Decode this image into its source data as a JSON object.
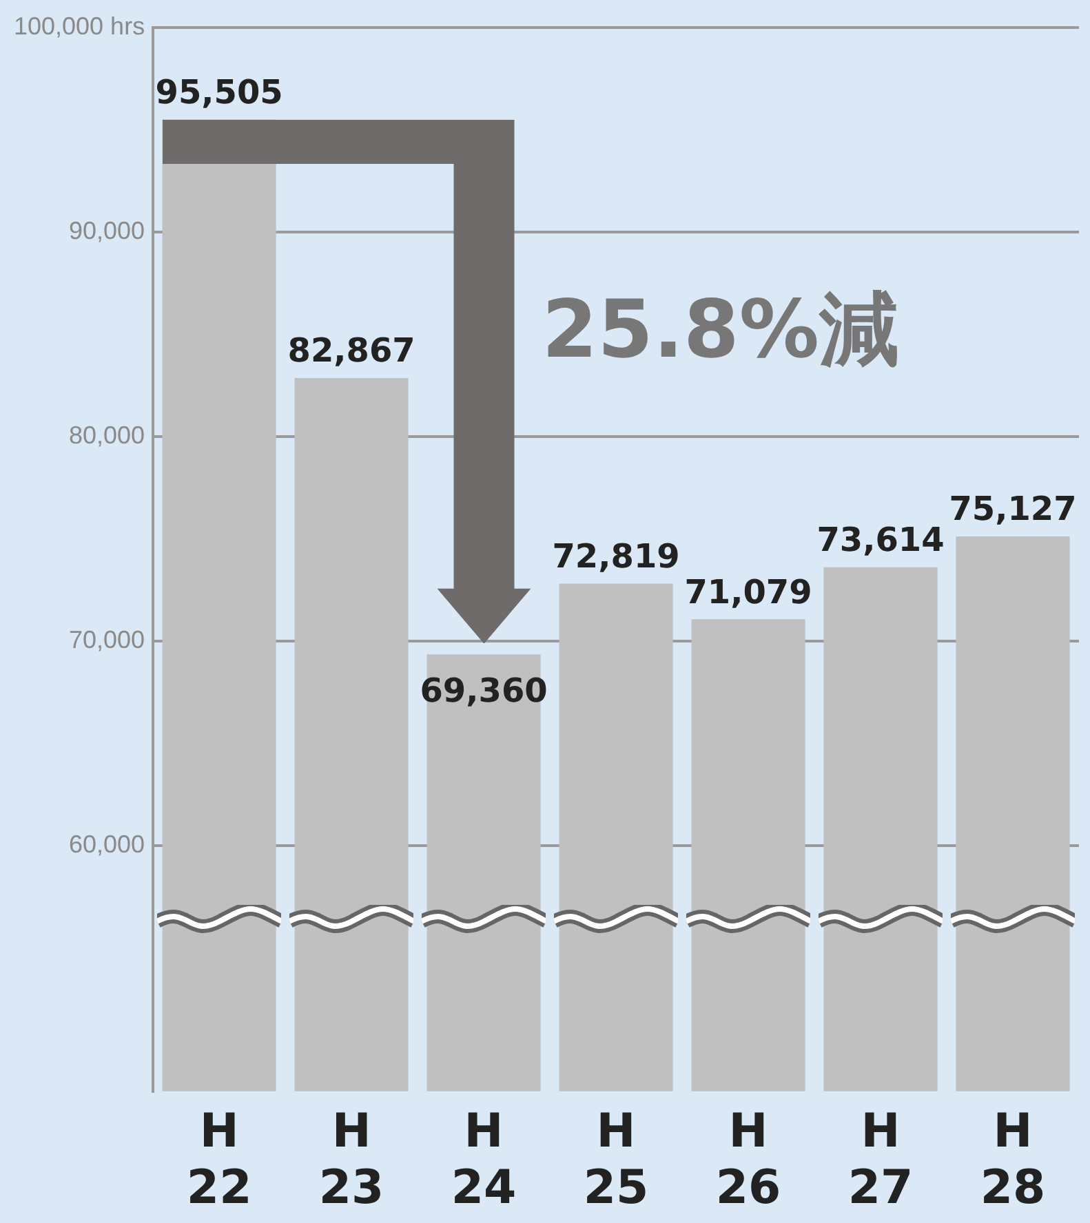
{
  "chart_data": {
    "type": "bar",
    "categories": [
      "H 22",
      "H 23",
      "H 24",
      "H 25",
      "H 26",
      "H 27",
      "H 28"
    ],
    "values": [
      95505,
      82867,
      69360,
      72819,
      71079,
      73614,
      75127
    ],
    "color": "#c0c0c0",
    "ylim": [
      48000,
      100000
    ],
    "yticks": [
      {
        "value": 60000,
        "label": "60,000"
      },
      {
        "value": 70000,
        "label": "70,000"
      },
      {
        "value": 80000,
        "label": "80,000"
      },
      {
        "value": 90000,
        "label": "90,000"
      },
      {
        "value": 100000,
        "label": "100,000 hrs"
      }
    ],
    "value_labels": [
      "95,505",
      "82,867",
      "69,360",
      "72,819",
      "71,079",
      "73,614",
      "75,127"
    ],
    "grid": "y",
    "legend": false,
    "annotations": [
      "25.8%減"
    ]
  }
}
